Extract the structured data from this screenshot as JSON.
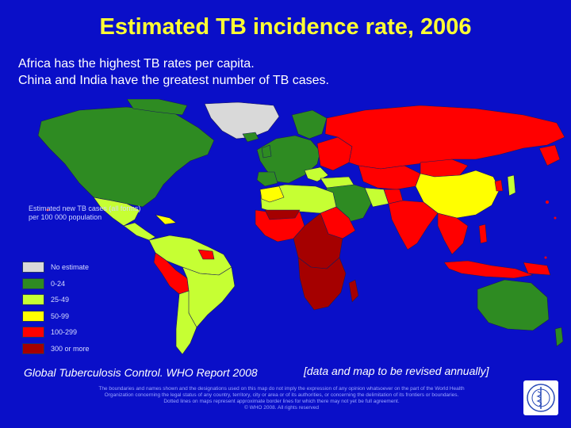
{
  "title": "Estimated TB incidence rate, 2006",
  "subtitle": [
    "Africa has the highest TB rates per capita.",
    "China and India have the greatest number of TB cases."
  ],
  "legend": {
    "title": "Estimated new TB cases (all forms) per 100 000 population",
    "items": [
      {
        "label": "No estimate",
        "color": "#d9d9d9"
      },
      {
        "label": "0-24",
        "color": "#2e8b22"
      },
      {
        "label": "25-49",
        "color": "#c6ff33"
      },
      {
        "label": "50-99",
        "color": "#ffff00"
      },
      {
        "label": "100-299",
        "color": "#ff0000"
      },
      {
        "label": "300 or more",
        "color": "#a50000"
      }
    ]
  },
  "source": "Global Tuberculosis Control. WHO Report 2008",
  "note": "[data and map to be revised annually]",
  "disclaimer": [
    "The boundaries and names shown and the designations used on this map do not imply the expression of any opinion whatsoever on the part of the World Health",
    "Organization concerning the legal status of any country, territory, city or area or of its authorities, or concerning the delimitation of its frontiers or boundaries.",
    "Dotted lines on maps represent approximate border lines for which there may not yet be full agreement.",
    "© WHO 2008. All rights reserved"
  ],
  "colors": {
    "background": "#0a0fc8",
    "title": "#ffff33",
    "no_estimate": "#d9d9d9",
    "c0_24": "#2e8b22",
    "c25_49": "#c6ff33",
    "c50_99": "#ffff00",
    "c100_299": "#ff0000",
    "c300plus": "#a50000"
  },
  "logo_icon": "who-emblem-icon"
}
